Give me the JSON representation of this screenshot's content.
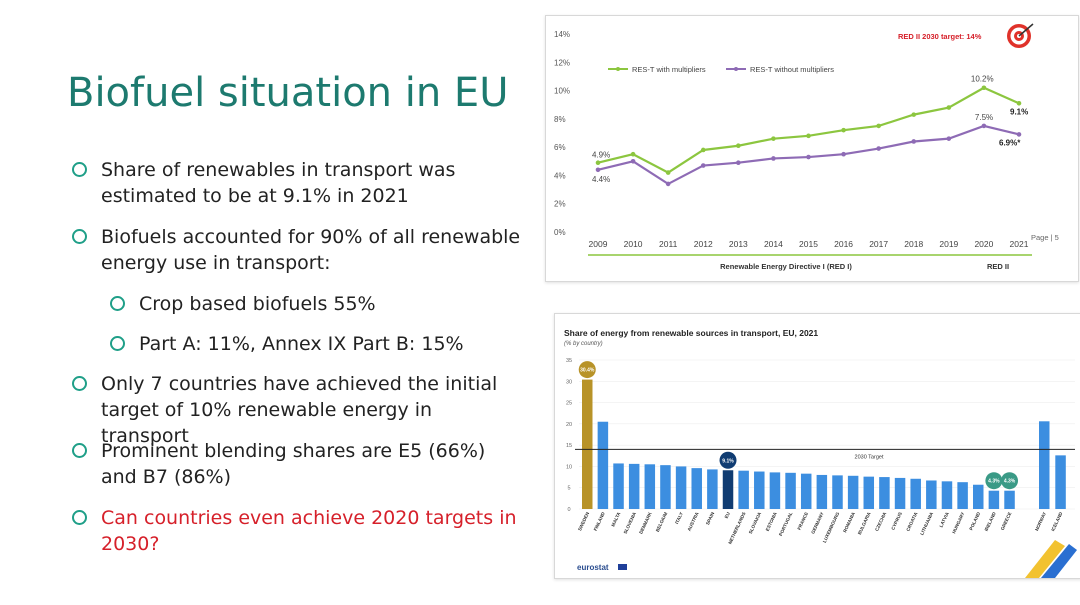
{
  "slide": {
    "title": "Biofuel situation in EU",
    "bullets": [
      {
        "text": "Share of renewables in transport was estimated to be at 9.1% in 2021",
        "level": 1,
        "highlight": false
      },
      {
        "text": "Biofuels accounted for 90% of all renewable energy use in transport:",
        "level": 1,
        "highlight": false
      },
      {
        "text": "Crop based biofuels 55%",
        "level": 2,
        "highlight": false
      },
      {
        "text": "Part A: 11%, Annex IX Part B: 15%",
        "level": 2,
        "highlight": false
      },
      {
        "text": "Only 7 countries have achieved the initial target of 10% renewable energy in transport",
        "level": 1,
        "highlight": false
      },
      {
        "text": "Prominent blending shares are E5 (66%) and B7 (86%)",
        "level": 1,
        "highlight": false
      },
      {
        "text": "Can countries even achieve 2020 targets in 2030?",
        "level": 1,
        "highlight": true
      }
    ]
  },
  "chart_data": [
    {
      "type": "line",
      "title": "",
      "target_label": "RED II 2030 target: 14%",
      "page_label": "Page | 5",
      "x": [
        2009,
        2010,
        2011,
        2012,
        2013,
        2014,
        2015,
        2016,
        2017,
        2018,
        2019,
        2020,
        2021
      ],
      "y_ticks": [
        "0%",
        "2%",
        "4%",
        "6%",
        "8%",
        "10%",
        "12%",
        "14%"
      ],
      "ylim": [
        0,
        14
      ],
      "series": [
        {
          "name": "RES-T with multipliers",
          "color": "#8cc63f",
          "values": [
            4.9,
            5.5,
            4.2,
            5.8,
            6.1,
            6.6,
            6.8,
            7.2,
            7.5,
            8.3,
            8.8,
            10.2,
            9.1
          ]
        },
        {
          "name": "RES-T without multipliers",
          "color": "#8e6bb5",
          "values": [
            4.4,
            5.0,
            3.4,
            4.7,
            4.9,
            5.2,
            5.3,
            5.5,
            5.9,
            6.4,
            6.6,
            7.5,
            6.9
          ]
        }
      ],
      "annotations": [
        "4.9%",
        "4.4%",
        "10.2%",
        "9.1%",
        "7.5%",
        "6.9%*"
      ],
      "periods": [
        {
          "label": "Renewable Energy Directive I (RED I)",
          "from": 2009,
          "to": 2020
        },
        {
          "label": "RED II",
          "from": 2020,
          "to": 2021
        }
      ]
    },
    {
      "type": "bar",
      "title": "Share of energy from renewable sources in transport, EU, 2021",
      "subtitle": "(% by country)",
      "source": "eurostat",
      "ylim": [
        0,
        35
      ],
      "y_ticks": [
        "0",
        "5",
        "10",
        "15",
        "20",
        "25",
        "30",
        "35"
      ],
      "target_value": 14,
      "target_label": "2030 Target",
      "categories": [
        "SWEDEN",
        "FINLAND",
        "MALTA",
        "SLOVENIA",
        "DENMARK",
        "BELGIUM",
        "ITALY",
        "AUSTRIA",
        "SPAIN",
        "EU",
        "NETHERLANDS",
        "SLOVAKIA",
        "ESTONIA",
        "PORTUGAL",
        "FRANCE",
        "GERMANY",
        "LUXEMBOURG",
        "ROMANIA",
        "BULGARIA",
        "CZECHIA",
        "CYPRUS",
        "CROATIA",
        "LITHUANIA",
        "LATVIA",
        "HUNGARY",
        "POLAND",
        "IRELAND",
        "GREECE",
        "NORWAY",
        "ICELAND"
      ],
      "values": [
        30.4,
        20.5,
        10.7,
        10.6,
        10.5,
        10.3,
        10.0,
        9.6,
        9.3,
        9.1,
        9.0,
        8.8,
        8.6,
        8.5,
        8.3,
        8.0,
        7.9,
        7.8,
        7.6,
        7.5,
        7.3,
        7.1,
        6.7,
        6.5,
        6.3,
        5.7,
        4.3,
        4.3,
        20.6,
        12.6
      ],
      "highlight_labels": {
        "SWEDEN": "30.4%",
        "EU": "9.1%",
        "IRELAND": "4.3%",
        "GREECE": "4.3%"
      },
      "colors": {
        "bar": "#3c8ee0",
        "sweden": "#b89328",
        "eu": "#103c72",
        "highlight_bubble": "#3a9a86",
        "target_line": "#222222"
      }
    }
  ]
}
